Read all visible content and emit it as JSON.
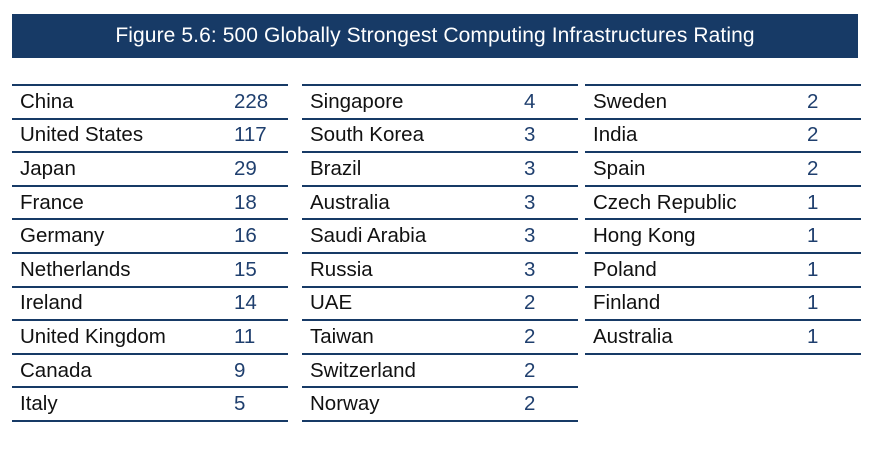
{
  "title": "Figure 5.6: 500 Globally Strongest Computing Infrastructures Rating",
  "columns": [
    {
      "rows": [
        {
          "country": "China",
          "count": "228"
        },
        {
          "country": "United States",
          "count": "117"
        },
        {
          "country": "Japan",
          "count": "29"
        },
        {
          "country": "France",
          "count": "18"
        },
        {
          "country": "Germany",
          "count": "16"
        },
        {
          "country": "Netherlands",
          "count": "15"
        },
        {
          "country": "Ireland",
          "count": "14"
        },
        {
          "country": "United Kingdom",
          "count": "11"
        },
        {
          "country": "Canada",
          "count": "9"
        },
        {
          "country": "Italy",
          "count": "5"
        }
      ]
    },
    {
      "rows": [
        {
          "country": "Singapore",
          "count": "4"
        },
        {
          "country": "South Korea",
          "count": "3"
        },
        {
          "country": "Brazil",
          "count": "3"
        },
        {
          "country": "Australia",
          "count": "3"
        },
        {
          "country": "Saudi Arabia",
          "count": "3"
        },
        {
          "country": "Russia",
          "count": "3"
        },
        {
          "country": "UAE",
          "count": "2"
        },
        {
          "country": "Taiwan",
          "count": "2"
        },
        {
          "country": "Switzerland",
          "count": "2"
        },
        {
          "country": "Norway",
          "count": "2"
        }
      ]
    },
    {
      "rows": [
        {
          "country": "Sweden",
          "count": "2"
        },
        {
          "country": "India",
          "count": "2"
        },
        {
          "country": "Spain",
          "count": "2"
        },
        {
          "country": "Czech Republic",
          "count": "1"
        },
        {
          "country": "Hong Kong",
          "count": "1"
        },
        {
          "country": "Poland",
          "count": "1"
        },
        {
          "country": "Finland",
          "count": "1"
        },
        {
          "country": "Australia",
          "count": "1"
        }
      ]
    }
  ]
}
